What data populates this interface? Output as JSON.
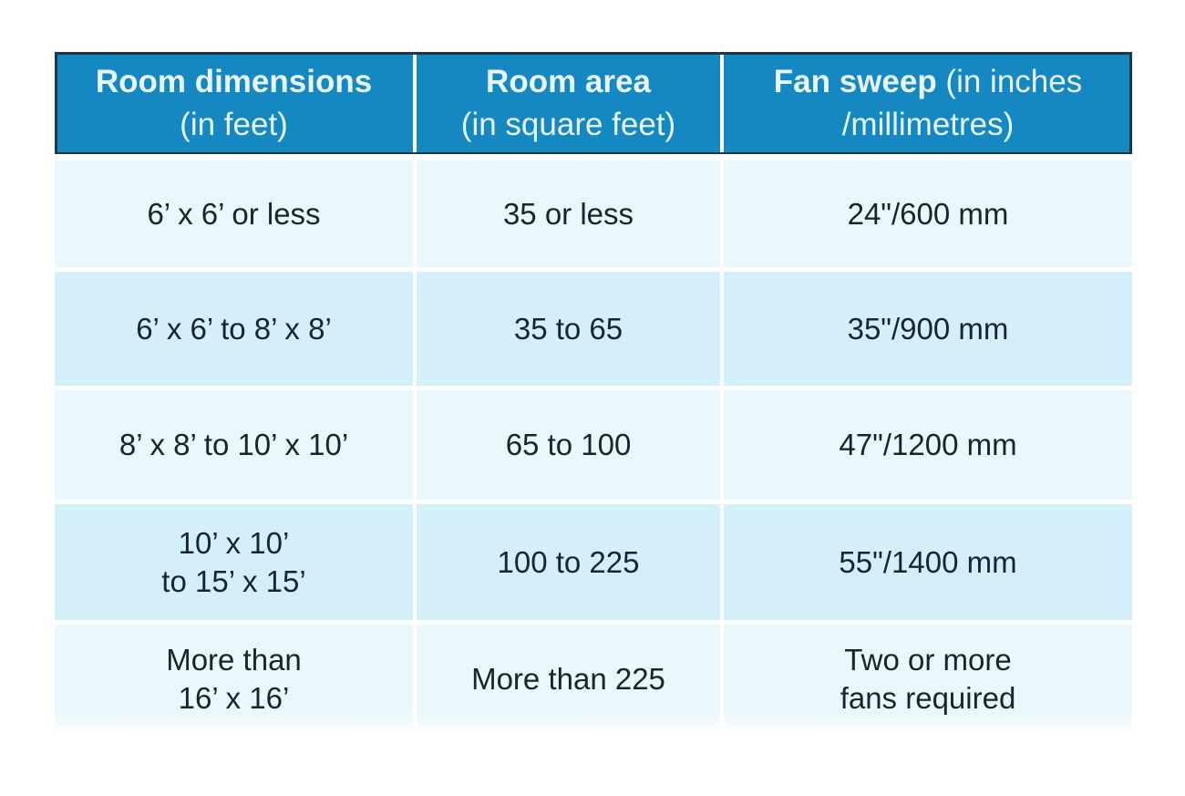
{
  "colors": {
    "header_background": "#1587c1",
    "header_border": "#1d3744",
    "header_text": "#e6f5fb",
    "row_light_background": "#ebf8fb",
    "row_dark_background": "#d3eff9",
    "cell_text": "#16262e",
    "separator": "#ffffff",
    "page_background": "#ffffff"
  },
  "table": {
    "headers": [
      {
        "bold": "Room dimensions",
        "rest": "",
        "line2": "(in feet)"
      },
      {
        "bold": "Room area",
        "rest": "",
        "line2": "(in square feet)"
      },
      {
        "bold": "Fan sweep",
        "rest": " (in inches",
        "line2": "/millimetres)"
      }
    ],
    "rows": [
      {
        "cells": [
          "6’ x 6’ or less",
          "35 or less",
          "24\"/600 mm"
        ]
      },
      {
        "cells": [
          "6’ x 6’ to 8’ x 8’",
          "35 to 65",
          "35\"/900 mm"
        ]
      },
      {
        "cells": [
          "8’ x 8’ to 10’ x 10’",
          "65 to 100",
          "47\"/1200 mm"
        ]
      },
      {
        "cells": [
          "10’ x 10’\nto 15’ x 15’",
          "100 to 225",
          "55\"/1400 mm"
        ]
      },
      {
        "cells": [
          "More than\n16’ x 16’",
          "More than 225",
          "Two or more\nfans required"
        ]
      }
    ]
  },
  "chart_data": {
    "type": "table",
    "columns": [
      "Room dimensions (in feet)",
      "Room area (in square feet)",
      "Fan sweep (in inches /millimetres)"
    ],
    "rows": [
      [
        "6’ x 6’ or less",
        "35 or less",
        "24\"/600 mm"
      ],
      [
        "6’ x 6’ to 8’ x 8’",
        "35 to 65",
        "35\"/900 mm"
      ],
      [
        "8’ x 8’ to 10’ x 10’",
        "65 to 100",
        "47\"/1200 mm"
      ],
      [
        "10’ x 10’ to 15’ x 15’",
        "100 to 225",
        "55\"/1400 mm"
      ],
      [
        "More than 16’ x 16’",
        "More than 225",
        "Two or more fans required"
      ]
    ],
    "layout_hints": {
      "header_style": "blue band with white text, dark outline",
      "body_style": "alternating light and darker pale-blue rows, white gaps as separators"
    }
  }
}
